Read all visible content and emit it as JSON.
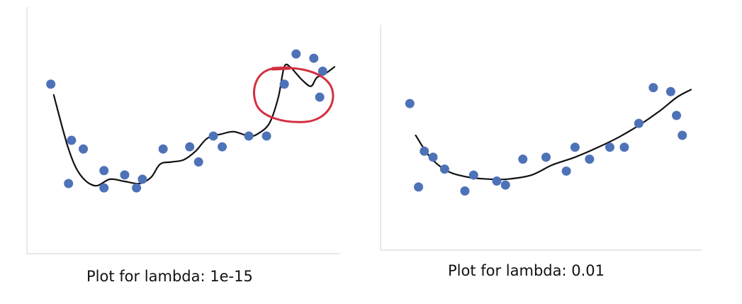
{
  "chart_data": [
    {
      "type": "scatter",
      "caption": "Plot for lambda: 1e-15",
      "xlabel": "",
      "ylabel": "",
      "xlim": [
        0,
        1
      ],
      "ylim": [
        -2.5,
        1.6
      ],
      "grid": false,
      "colors": {
        "points": "#4e72b8",
        "line": "#111111",
        "annotation": "#d32f3f"
      },
      "series": [
        {
          "type": "scatter",
          "x": [
            0.04,
            0.1,
            0.11,
            0.15,
            0.22,
            0.22,
            0.29,
            0.33,
            0.35,
            0.42,
            0.51,
            0.54,
            0.59,
            0.62,
            0.71,
            0.77,
            0.83,
            0.87,
            0.93,
            0.95,
            0.96
          ],
          "y": [
            0.8,
            -1.5,
            -0.5,
            -0.7,
            -1.2,
            -1.6,
            -1.3,
            -1.6,
            -1.4,
            -0.7,
            -0.65,
            -1.0,
            -0.4,
            -0.65,
            -0.4,
            -0.4,
            0.8,
            1.5,
            1.4,
            0.5,
            1.1
          ]
        },
        {
          "type": "line",
          "x": [
            0.05,
            0.1,
            0.14,
            0.19,
            0.24,
            0.29,
            0.34,
            0.38,
            0.41,
            0.45,
            0.49,
            0.53,
            0.57,
            0.62,
            0.66,
            0.71,
            0.74,
            0.78,
            0.81,
            0.83,
            0.85,
            0.87,
            0.89,
            0.92,
            0.94,
            0.97,
            1.0
          ],
          "y": [
            0.55,
            -0.7,
            -1.3,
            -1.55,
            -1.4,
            -1.45,
            -1.5,
            -1.35,
            -1.05,
            -1.0,
            -0.95,
            -0.75,
            -0.45,
            -0.35,
            -0.3,
            -0.4,
            -0.35,
            -0.1,
            0.5,
            1.2,
            1.2,
            1.05,
            0.9,
            0.75,
            0.95,
            1.05,
            1.2
          ]
        }
      ],
      "annotation": "red circle around the overfit curve peak (upper right)"
    },
    {
      "type": "scatter",
      "caption": "Plot for lambda: 0.01",
      "xlabel": "",
      "ylabel": "",
      "xlim": [
        0,
        1
      ],
      "ylim": [
        -2.5,
        1.6
      ],
      "grid": false,
      "colors": {
        "points": "#4e72b8",
        "line": "#111111"
      },
      "series": [
        {
          "type": "scatter",
          "x": [
            0.03,
            0.06,
            0.08,
            0.11,
            0.15,
            0.22,
            0.25,
            0.33,
            0.36,
            0.42,
            0.5,
            0.57,
            0.6,
            0.65,
            0.72,
            0.77,
            0.82,
            0.87,
            0.93,
            0.95,
            0.97
          ],
          "y": [
            0.6,
            -1.5,
            -0.6,
            -0.75,
            -1.05,
            -1.6,
            -1.2,
            -1.35,
            -1.45,
            -0.8,
            -0.75,
            -1.1,
            -0.5,
            -0.8,
            -0.5,
            -0.5,
            0.1,
            1.0,
            0.9,
            0.3,
            -0.2
          ]
        },
        {
          "type": "line",
          "x": [
            0.05,
            0.1,
            0.16,
            0.23,
            0.3,
            0.37,
            0.45,
            0.52,
            0.6,
            0.68,
            0.75,
            0.82,
            0.89,
            0.95,
            1.0
          ],
          "y": [
            -0.2,
            -0.75,
            -1.1,
            -1.25,
            -1.3,
            -1.3,
            -1.2,
            -0.95,
            -0.75,
            -0.5,
            -0.25,
            0.05,
            0.4,
            0.75,
            0.95
          ]
        }
      ]
    }
  ]
}
